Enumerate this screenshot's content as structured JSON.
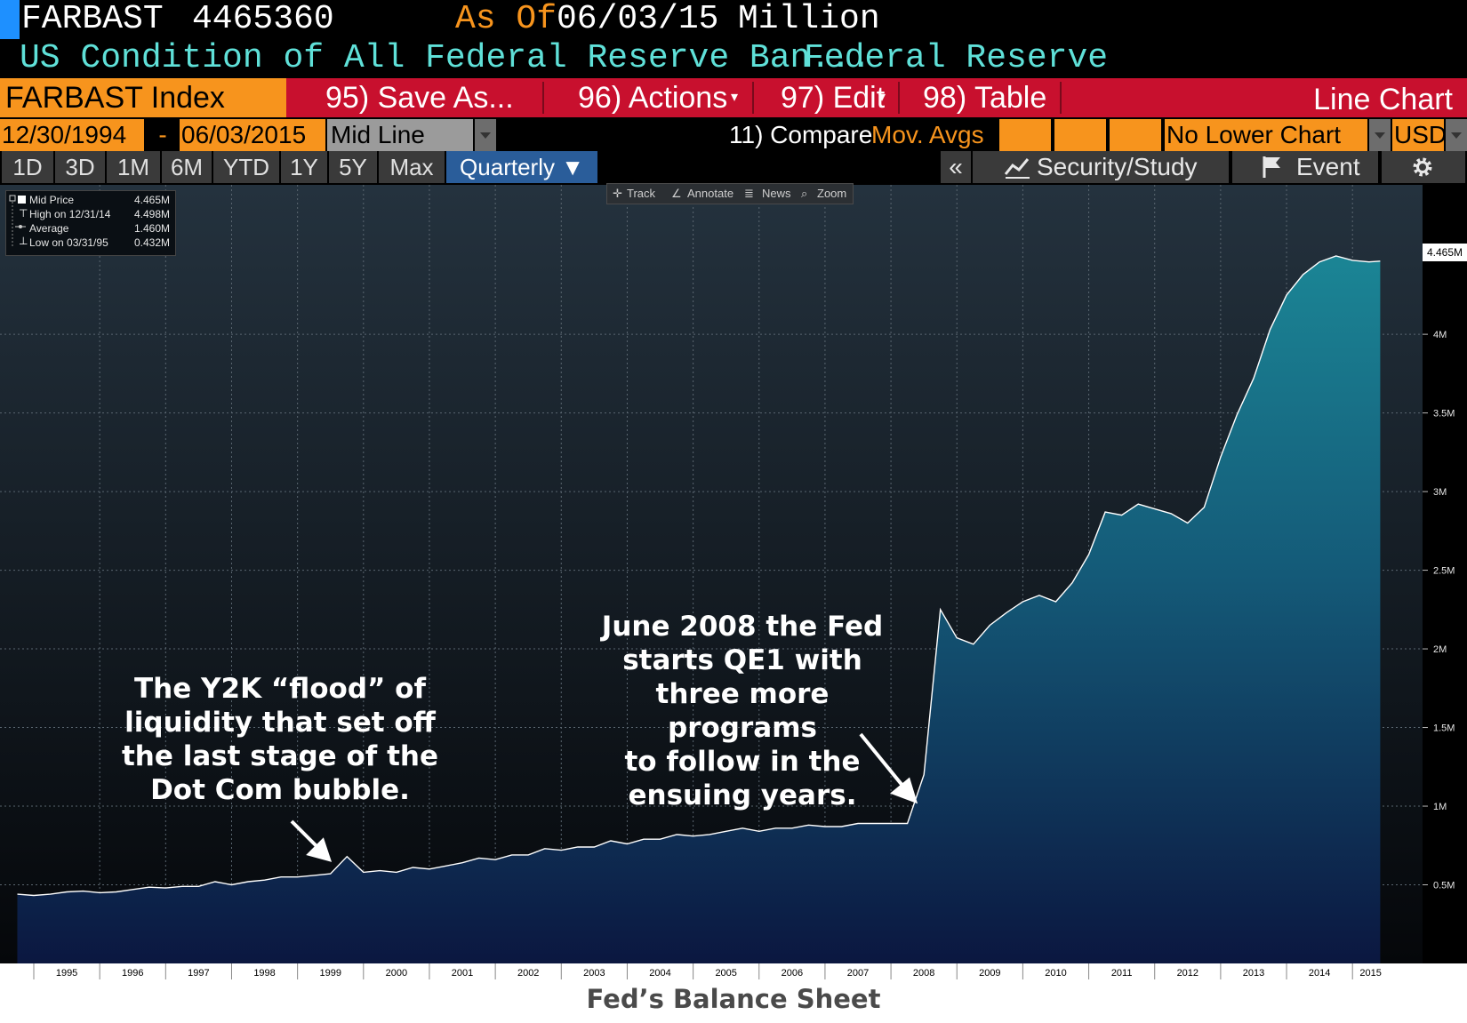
{
  "header": {
    "ticker": "FARBAST",
    "value": "4465360",
    "as_of_label": "As Of",
    "as_of_date": "06/03/15",
    "units": "Million",
    "description": "US Condition of All Federal Reserve Ban...",
    "source": "Federal Reserve"
  },
  "toolbar": {
    "index_label": "FARBAST Index",
    "buttons": [
      "95) Save As...",
      "96) Actions",
      "97) Edit",
      "98) Table"
    ],
    "chart_type": "Line Chart"
  },
  "controls": {
    "start_date": "12/30/1994",
    "date_sep": "-",
    "end_date": "06/03/2015",
    "line_mode": "Mid Line",
    "compare": "11) Compare",
    "mov_avgs": "Mov. Avgs",
    "lower_chart": "No Lower Chart",
    "currency": "USD"
  },
  "periods": [
    "1D",
    "3D",
    "1M",
    "6M",
    "YTD",
    "1Y",
    "5Y",
    "Max",
    "Quarterly ▼"
  ],
  "tools": {
    "collapse": "«",
    "security_study": "Security/Study",
    "event": "Event"
  },
  "chart_tools": [
    "Track",
    "Annotate",
    "News",
    "Zoom"
  ],
  "legend": [
    {
      "label": "Mid Price",
      "value": "4.465M"
    },
    {
      "label": "High on 12/31/14",
      "value": "4.498M"
    },
    {
      "label": "Average",
      "value": "1.460M"
    },
    {
      "label": "Low on 03/31/95",
      "value": "0.432M"
    }
  ],
  "last_value_label": "4.465M",
  "annotations": {
    "y2k": "The Y2K “flood” of\nliquidity that set off\nthe last stage of the\nDot Com bubble.",
    "qe1": "June 2008 the Fed\nstarts QE1 with\nthree more programs\nto follow in the\nensuing years."
  },
  "caption": "Fed’s Balance Sheet",
  "colors": {
    "orange": "#f7941d",
    "red_bar": "#c8102e",
    "cyan_text": "#5fe0d8",
    "area_top": "#1b8595",
    "area_bottom": "#0b1740",
    "line": "#ffffff"
  },
  "chart_data": {
    "type": "area",
    "y_tick_labels": [
      "0.5M",
      "1M",
      "1.5M",
      "2M",
      "2.5M",
      "3M",
      "3.5M",
      "4M"
    ],
    "y_ticks": [
      0.5,
      1,
      1.5,
      2,
      2.5,
      3,
      3.5,
      4
    ],
    "ylim": [
      0,
      4.95
    ],
    "xlim": [
      1995.0,
      2015.55
    ],
    "x_tick_labels": [
      "1995",
      "1996",
      "1997",
      "1998",
      "1999",
      "2000",
      "2001",
      "2002",
      "2003",
      "2004",
      "2005",
      "2006",
      "2007",
      "2008",
      "2009",
      "2010",
      "2011",
      "2012",
      "2013",
      "2014",
      "2015"
    ],
    "x": [
      1994.75,
      1995.0,
      1995.25,
      1995.5,
      1995.75,
      1996.0,
      1996.25,
      1996.5,
      1996.75,
      1997.0,
      1997.25,
      1997.5,
      1997.75,
      1998.0,
      1998.25,
      1998.5,
      1998.75,
      1999.0,
      1999.25,
      1999.5,
      1999.75,
      2000.0,
      2000.25,
      2000.5,
      2000.75,
      2001.0,
      2001.25,
      2001.5,
      2001.75,
      2002.0,
      2002.25,
      2002.5,
      2002.75,
      2003.0,
      2003.25,
      2003.5,
      2003.75,
      2004.0,
      2004.25,
      2004.5,
      2004.75,
      2005.0,
      2005.25,
      2005.5,
      2005.75,
      2006.0,
      2006.25,
      2006.5,
      2006.75,
      2007.0,
      2007.25,
      2007.5,
      2007.75,
      2008.0,
      2008.25,
      2008.5,
      2008.75,
      2009.0,
      2009.25,
      2009.5,
      2009.75,
      2010.0,
      2010.25,
      2010.5,
      2010.75,
      2011.0,
      2011.25,
      2011.5,
      2011.75,
      2012.0,
      2012.25,
      2012.5,
      2012.75,
      2013.0,
      2013.25,
      2013.5,
      2013.75,
      2014.0,
      2014.25,
      2014.5,
      2014.75,
      2015.0,
      2015.25,
      2015.42
    ],
    "values": [
      0.44,
      0.432,
      0.44,
      0.455,
      0.46,
      0.45,
      0.455,
      0.47,
      0.485,
      0.48,
      0.49,
      0.49,
      0.52,
      0.5,
      0.52,
      0.53,
      0.55,
      0.55,
      0.56,
      0.57,
      0.68,
      0.58,
      0.59,
      0.58,
      0.61,
      0.6,
      0.62,
      0.64,
      0.67,
      0.66,
      0.69,
      0.69,
      0.73,
      0.72,
      0.74,
      0.74,
      0.78,
      0.76,
      0.79,
      0.79,
      0.82,
      0.81,
      0.82,
      0.84,
      0.86,
      0.84,
      0.86,
      0.86,
      0.88,
      0.87,
      0.87,
      0.89,
      0.89,
      0.89,
      0.89,
      1.2,
      2.25,
      2.07,
      2.03,
      2.15,
      2.23,
      2.3,
      2.34,
      2.3,
      2.42,
      2.6,
      2.87,
      2.85,
      2.92,
      2.89,
      2.86,
      2.8,
      2.9,
      3.22,
      3.49,
      3.72,
      4.03,
      4.25,
      4.38,
      4.46,
      4.498,
      4.47,
      4.46,
      4.465
    ],
    "title": "",
    "xlabel": "",
    "ylabel": "",
    "grid": true,
    "legend_position": "top-left"
  }
}
